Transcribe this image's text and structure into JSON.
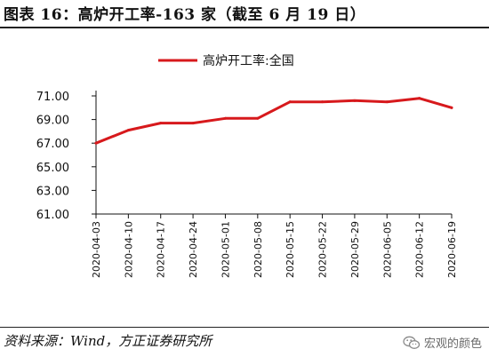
{
  "header": {
    "title": "图表 16：高炉开工率-163 家（截至 6 月 19 日）"
  },
  "footer": {
    "source": "资料来源：Wind，方正证券研究所",
    "watermark": "宏观的颜色",
    "watermark_icon": "wechat-icon"
  },
  "colors": {
    "series": "#d7191c",
    "axis": "#111111"
  },
  "chart_data": {
    "type": "line",
    "title": "",
    "xlabel": "",
    "ylabel": "",
    "legend_position": "top-center",
    "grid": false,
    "ylim": [
      61,
      71
    ],
    "yticks": [
      "61.00",
      "63.00",
      "65.00",
      "67.00",
      "69.00",
      "71.00"
    ],
    "categories": [
      "2020-04-03",
      "2020-04-10",
      "2020-04-17",
      "2020-04-24",
      "2020-05-01",
      "2020-05-08",
      "2020-05-15",
      "2020-05-22",
      "2020-05-29",
      "2020-06-05",
      "2020-06-12",
      "2020-06-19"
    ],
    "series": [
      {
        "name": "高炉开工率:全国",
        "values": [
          67.0,
          68.1,
          68.7,
          68.7,
          69.1,
          69.1,
          70.5,
          70.5,
          70.6,
          70.5,
          70.8,
          70.0
        ]
      }
    ]
  }
}
